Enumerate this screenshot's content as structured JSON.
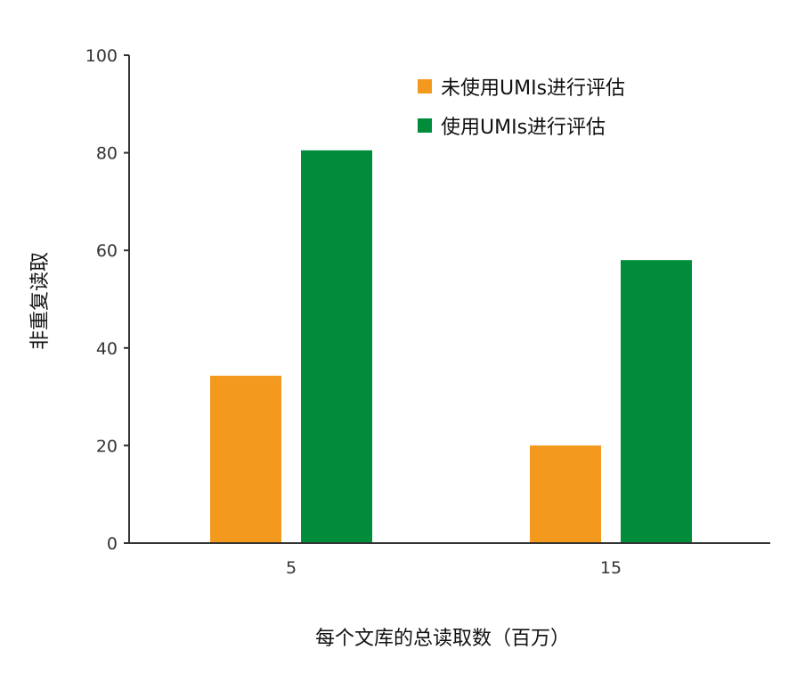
{
  "chart_data": {
    "type": "bar",
    "categories": [
      "5",
      "15"
    ],
    "series": [
      {
        "name": "未使用UMIs进行评估",
        "color": "#f39a1e",
        "values": [
          34.3,
          20.0
        ]
      },
      {
        "name": "使用UMIs进行评估",
        "color": "#008c3a",
        "values": [
          80.5,
          58.0
        ]
      }
    ],
    "xlabel": "每个文库的总读取数（百万）",
    "ylabel": "非重复读取",
    "ylim": [
      0,
      100
    ],
    "yticks": [
      0,
      20,
      40,
      60,
      80,
      100
    ],
    "grid": false,
    "legend_position": "top-right"
  }
}
